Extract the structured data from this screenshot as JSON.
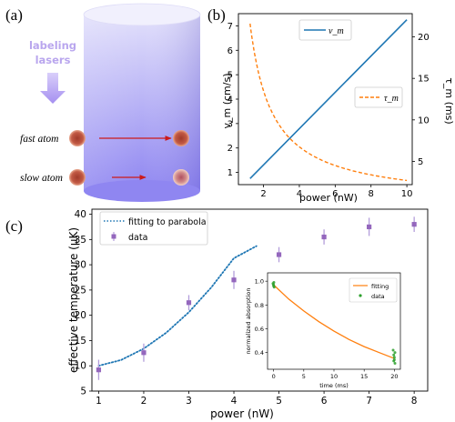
{
  "panel_a": {
    "label": "(a)",
    "lasers_label": [
      "labeling",
      "lasers"
    ],
    "fast_label": "fast atom",
    "slow_label": "slow atom"
  },
  "colors": {
    "blue": "#1f77b4",
    "orange": "#ff7f0e",
    "purple": "#9467bd",
    "green": "#2ca02c",
    "cylinder_top": "#e2e0fb",
    "cylinder_bottom": "#8f86f1",
    "laser": "#b9a6ee",
    "arrow_red": "#cc1a1a",
    "atom": "#bb5140"
  },
  "chart_data": [
    {
      "id": "b",
      "panel_label": "(b)",
      "type": "line",
      "xlabel": "power (nW)",
      "ylabel_left": "v_m (cm/s)",
      "ylabel_right": "τ_m (ms)",
      "xlim": [
        0.6,
        10.3
      ],
      "ylim_left": [
        0.5,
        7.5
      ],
      "ylim_right": [
        2.2,
        22.8
      ],
      "xticks": [
        2,
        4,
        6,
        8,
        10
      ],
      "yticks_left": [
        1,
        2,
        3,
        4,
        5,
        6,
        7
      ],
      "yticks_right": [
        5,
        10,
        15,
        20
      ],
      "series": [
        {
          "name": "v_m",
          "axis": "left",
          "style": "solid",
          "x": [
            1.25,
            10
          ],
          "y": [
            0.75,
            7.25
          ]
        },
        {
          "name": "τ_m",
          "axis": "right",
          "style": "dashed",
          "x": [
            1.25,
            1.5,
            2,
            2.5,
            3,
            3.5,
            4,
            5,
            6,
            7,
            8,
            9,
            10
          ],
          "y": [
            21.6,
            18.0,
            13.5,
            10.8,
            9.0,
            7.7,
            6.75,
            5.4,
            4.5,
            3.86,
            3.38,
            3.0,
            2.7
          ]
        }
      ]
    },
    {
      "id": "c",
      "panel_label": "(c)",
      "type": "scatter",
      "xlabel": "power (nW)",
      "ylabel": "effective temperature (μK)",
      "xlim": [
        0.85,
        8.3
      ],
      "ylim": [
        5,
        41
      ],
      "xticks": [
        1,
        2,
        3,
        4,
        5,
        6,
        7,
        8
      ],
      "yticks": [
        5,
        10,
        15,
        20,
        25,
        30,
        35,
        40
      ],
      "series": [
        {
          "name": "fitting to parabola",
          "style": "dotted",
          "x": [
            1,
            1.5,
            2,
            2.5,
            3,
            3.5,
            4,
            4.5
          ],
          "y": [
            10.0,
            11.16,
            13.4,
            16.56,
            20.6,
            25.53,
            31.3,
            33.7
          ]
        },
        {
          "name": "data",
          "style": "points",
          "x": [
            1,
            2,
            3,
            4,
            5,
            6,
            7,
            8
          ],
          "y": [
            9.2,
            12.6,
            22.5,
            27.0,
            32.0,
            35.5,
            37.5,
            38.0
          ],
          "yerr": [
            2.0,
            1.8,
            1.5,
            1.8,
            1.5,
            1.5,
            1.8,
            1.5
          ]
        }
      ]
    },
    {
      "id": "c-inset",
      "type": "line",
      "xlabel": "time (ms)",
      "ylabel": "normalized absorption",
      "xlim": [
        -1,
        21
      ],
      "ylim": [
        0.26,
        1.07
      ],
      "xticks": [
        0,
        5,
        10,
        15,
        20
      ],
      "yticks": [
        0.4,
        0.6,
        0.8,
        1.0
      ],
      "series": [
        {
          "name": "fitting",
          "style": "solid",
          "x": [
            0,
            2.5,
            5,
            7.5,
            10,
            12.5,
            15,
            17.5,
            20
          ],
          "y": [
            0.97,
            0.85,
            0.75,
            0.66,
            0.58,
            0.51,
            0.45,
            0.4,
            0.35
          ]
        },
        {
          "name": "data",
          "style": "points",
          "x": [
            -0.1,
            0,
            0.05,
            0.1,
            0,
            19.8,
            19.9,
            20,
            20.1,
            20,
            19.9,
            20.1
          ],
          "y": [
            0.98,
            0.96,
            0.99,
            0.95,
            0.97,
            0.42,
            0.38,
            0.34,
            0.31,
            0.36,
            0.33,
            0.4
          ]
        }
      ]
    }
  ]
}
